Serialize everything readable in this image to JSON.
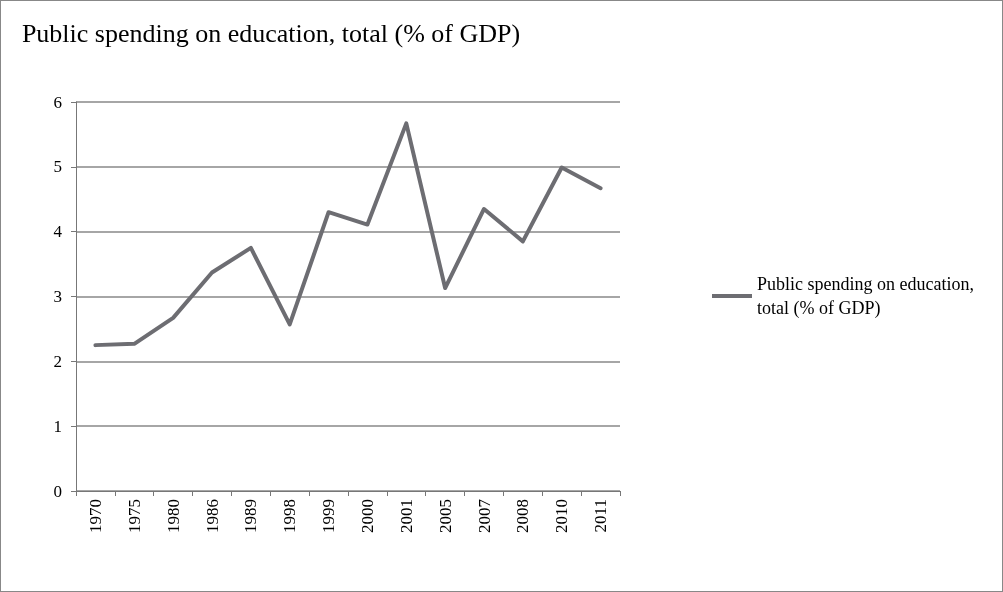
{
  "chart_data": {
    "type": "line",
    "title": "Public spending on education, total (% of GDP)",
    "categories": [
      "1970",
      "1975",
      "1980",
      "1986",
      "1989",
      "1998",
      "1999",
      "2000",
      "2001",
      "2005",
      "2007",
      "2008",
      "2010",
      "2011"
    ],
    "series": [
      {
        "name": "Public spending on education, total (% of GDP)",
        "color": "#6d6d72",
        "values": [
          2.25,
          2.27,
          2.67,
          3.37,
          3.75,
          2.57,
          4.3,
          4.11,
          5.67,
          3.13,
          4.35,
          3.85,
          4.99,
          4.67
        ]
      }
    ],
    "ylim": [
      0,
      6
    ],
    "yticks": [
      0,
      1,
      2,
      3,
      4,
      5,
      6
    ],
    "grid": "y",
    "legend": "right",
    "marker": "none",
    "line_style": "solid"
  }
}
